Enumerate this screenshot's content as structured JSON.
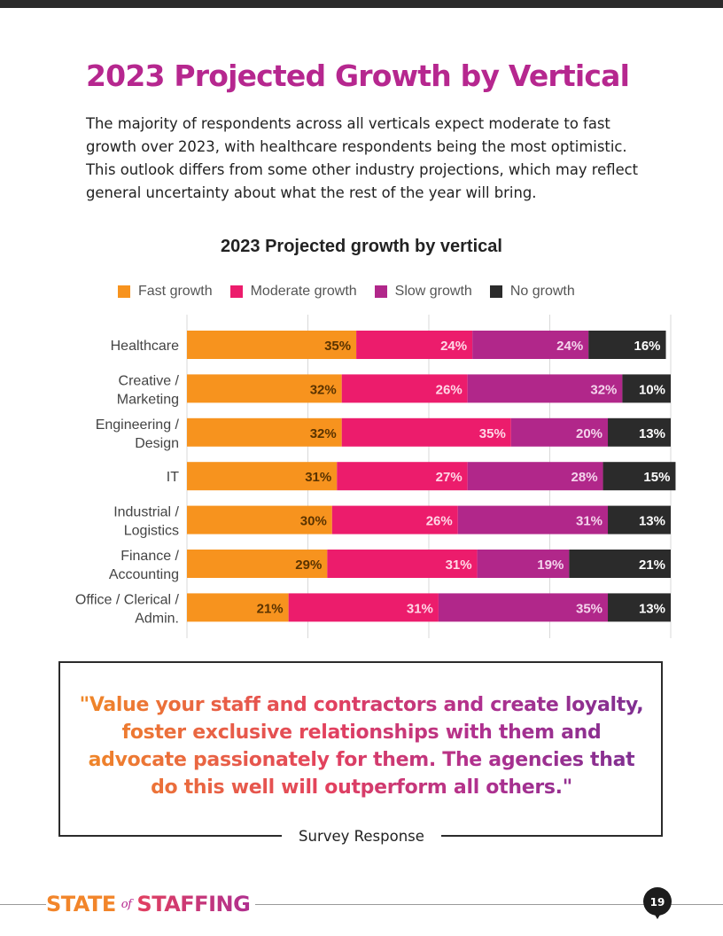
{
  "page": {
    "title": "2023 Projected Growth by Vertical",
    "intro": "The majority of respondents across all verticals expect moderate to fast growth over 2023, with healthcare respondents being the most optimistic. This outlook differs from some other industry projections, which may reflect general uncertainty about what the rest of the year will bring."
  },
  "quote": {
    "text": "\"Value your staff and contractors and create loyalty, foster exclusive relationships with them and advocate passionately for them. The agencies that do this well will outperform all others.\"",
    "attribution": "Survey Response"
  },
  "footer": {
    "brand_part1": "STATE",
    "brand_of": "of",
    "brand_part2": "STAFFING",
    "page_number": "19"
  },
  "colors": {
    "fast": "#f7931e",
    "moderate": "#ec1c6c",
    "slow": "#b1278a",
    "none": "#2b2b2b",
    "title": "#b6278f"
  },
  "chart_data": {
    "type": "bar",
    "orientation": "horizontal",
    "stacked": true,
    "title": "2023 Projected growth by vertical",
    "legend_position": "top",
    "grid": true,
    "xlim": [
      0,
      100
    ],
    "categories": [
      [
        "Healthcare"
      ],
      [
        "Creative /",
        "Marketing"
      ],
      [
        "Engineering /",
        "Design"
      ],
      [
        "IT"
      ],
      [
        "Industrial /",
        "Logistics"
      ],
      [
        "Finance /",
        "Accounting"
      ],
      [
        "Office / Clerical /",
        "Admin."
      ]
    ],
    "series": [
      {
        "name": "Fast growth",
        "color": "#f7931e",
        "label_color": "#5a3300",
        "values": [
          35,
          32,
          32,
          31,
          30,
          29,
          21
        ]
      },
      {
        "name": "Moderate growth",
        "color": "#ec1c6c",
        "label_color": "#ffd7e6",
        "values": [
          24,
          26,
          35,
          27,
          26,
          31,
          31
        ]
      },
      {
        "name": "Slow growth",
        "color": "#b1278a",
        "label_color": "#f4d4ec",
        "values": [
          24,
          32,
          20,
          28,
          31,
          19,
          35
        ]
      },
      {
        "name": "No growth",
        "color": "#2b2b2b",
        "label_color": "#ffffff",
        "values": [
          16,
          10,
          13,
          15,
          13,
          21,
          13
        ]
      }
    ]
  }
}
